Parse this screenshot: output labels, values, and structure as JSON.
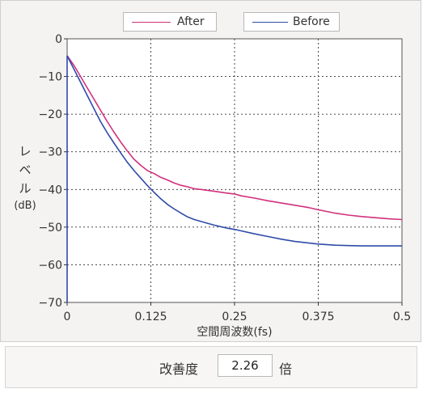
{
  "colors": {
    "after": "#d1307c",
    "before": "#2f4ba8",
    "grid": "#333333",
    "plot_bg": "#ffffff",
    "panel_bg": "#f4f3f2"
  },
  "improvement": {
    "label": "改善度",
    "value": "2.26",
    "unit": "倍"
  },
  "chart_data": {
    "type": "line",
    "title": "",
    "xlabel": "空間周波数(fs)",
    "ylabel": "レベル(dB)",
    "ylabel_lines": [
      "レ",
      "ベ",
      "ル",
      "(dB)"
    ],
    "xlim": [
      0,
      0.5
    ],
    "ylim": [
      -70,
      0
    ],
    "xticks": [
      "0",
      "0.125",
      "0.25",
      "0.375",
      "0.5"
    ],
    "yticks": [
      "0",
      "−10",
      "−20",
      "−30",
      "−40",
      "−50",
      "−60",
      "−70"
    ],
    "grid": true,
    "legend_position": "top",
    "series": [
      {
        "name": "After",
        "color": "#d1307c",
        "x": [
          0,
          0.01,
          0.02,
          0.03,
          0.04,
          0.05,
          0.06,
          0.07,
          0.08,
          0.09,
          0.1,
          0.11,
          0.12,
          0.13,
          0.14,
          0.15,
          0.16,
          0.17,
          0.18,
          0.19,
          0.2,
          0.22,
          0.24,
          0.25,
          0.26,
          0.28,
          0.3,
          0.32,
          0.34,
          0.36,
          0.375,
          0.4,
          0.42,
          0.44,
          0.46,
          0.48,
          0.5
        ],
        "y": [
          -4.5,
          -7,
          -10,
          -13,
          -16,
          -19,
          -22,
          -24.8,
          -27.4,
          -29.8,
          -32,
          -33.6,
          -35,
          -35.8,
          -36.8,
          -37.5,
          -38.3,
          -38.9,
          -39.3,
          -39.8,
          -40,
          -40.5,
          -41,
          -41.2,
          -41.7,
          -42.3,
          -43,
          -43.6,
          -44.2,
          -44.8,
          -45.4,
          -46.3,
          -46.8,
          -47.2,
          -47.5,
          -47.8,
          -48
        ]
      },
      {
        "name": "Before",
        "color": "#2f4ba8",
        "x": [
          0,
          0.01,
          0.02,
          0.03,
          0.04,
          0.05,
          0.06,
          0.07,
          0.08,
          0.09,
          0.1,
          0.11,
          0.12,
          0.13,
          0.14,
          0.15,
          0.16,
          0.17,
          0.18,
          0.19,
          0.2,
          0.22,
          0.24,
          0.25,
          0.26,
          0.28,
          0.3,
          0.32,
          0.34,
          0.36,
          0.375,
          0.4,
          0.42,
          0.44,
          0.46,
          0.48,
          0.5
        ],
        "y": [
          -4.5,
          -8,
          -11.5,
          -15,
          -18.5,
          -22,
          -25,
          -27.7,
          -30.3,
          -32.8,
          -35,
          -37,
          -39,
          -40.8,
          -42.5,
          -44,
          -45.2,
          -46.3,
          -47.3,
          -48,
          -48.5,
          -49.5,
          -50.3,
          -50.6,
          -51,
          -51.8,
          -52.5,
          -53.2,
          -53.8,
          -54.2,
          -54.5,
          -54.8,
          -54.9,
          -55,
          -55,
          -55,
          -55
        ]
      }
    ]
  }
}
